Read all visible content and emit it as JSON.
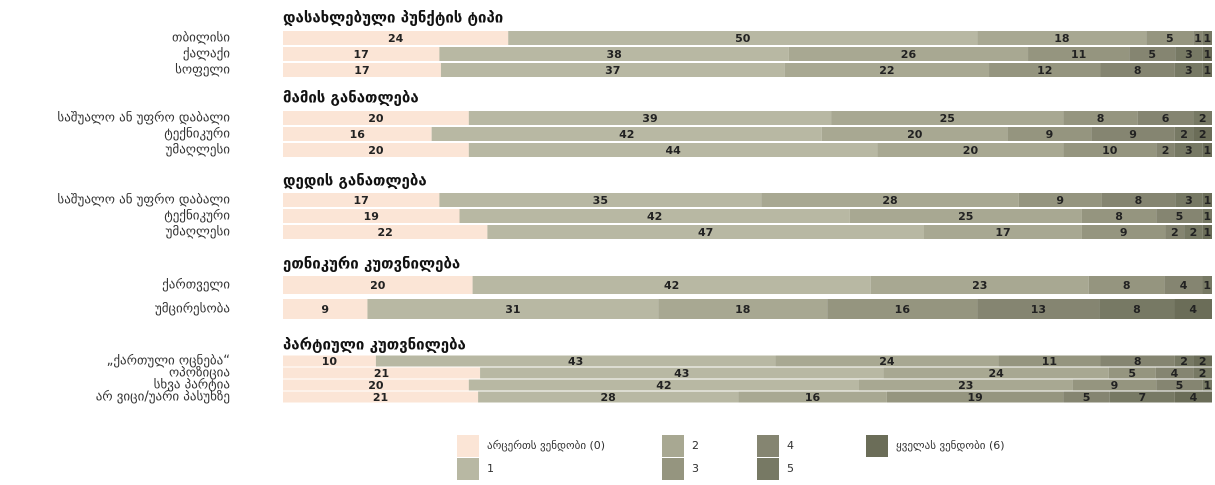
{
  "chart_data": {
    "type": "bar",
    "orientation": "horizontal",
    "stacked": true,
    "groups": [
      {
        "title": "დასახლებული პუნქტის ტიპი",
        "categories": [
          "თბილისი",
          "ქალაქი",
          "სოფელი"
        ]
      },
      {
        "title": "მამის განათლება",
        "categories": [
          "საშუალო ან უფრო დაბალი",
          "ტექნიკური",
          "უმაღლესი"
        ]
      },
      {
        "title": "დედის განათლება",
        "categories": [
          "საშუალო ან უფრო დაბალი",
          "ტექნიკური",
          "უმაღლესი"
        ]
      },
      {
        "title": "ეთნიკური კუთვნილება",
        "categories": [
          "ქართველი",
          "უმცირესობა"
        ]
      },
      {
        "title": "პარტიული კუთვნილება",
        "categories": [
          "„ქართული ოცნება“",
          "ოპოზიცია",
          "სხვა პარტია",
          "არ ვიცი/უარი პასუხზე"
        ]
      }
    ],
    "series": [
      {
        "name": "არცერთს ვენდობი (0)",
        "color": "#fbe5d6",
        "values": [
          24,
          17,
          17,
          20,
          16,
          20,
          17,
          19,
          22,
          20,
          9,
          10,
          21,
          20,
          21
        ]
      },
      {
        "name": "1",
        "color": "#b8b8a3",
        "values": [
          50,
          38,
          37,
          39,
          42,
          44,
          35,
          42,
          47,
          42,
          31,
          43,
          43,
          42,
          28
        ]
      },
      {
        "name": "2",
        "color": "#a8a892",
        "values": [
          18,
          26,
          22,
          25,
          20,
          20,
          28,
          25,
          17,
          23,
          18,
          24,
          24,
          23,
          16
        ]
      },
      {
        "name": "3",
        "color": "#95957f",
        "values": [
          5,
          11,
          12,
          8,
          9,
          10,
          9,
          8,
          9,
          8,
          16,
          11,
          5,
          9,
          19
        ]
      },
      {
        "name": "4",
        "color": "#858571",
        "values": [
          1,
          5,
          8,
          6,
          9,
          2,
          8,
          5,
          2,
          4,
          13,
          8,
          4,
          5,
          5
        ]
      },
      {
        "name": "5",
        "color": "#777964",
        "values": [
          1,
          3,
          3,
          2,
          2,
          3,
          3,
          1,
          2,
          1,
          8,
          2,
          2,
          1,
          7
        ]
      },
      {
        "name": "ყველას ვენდობი (6)",
        "color": "#6b6d58",
        "values": [
          null,
          1,
          1,
          null,
          2,
          1,
          1,
          null,
          1,
          null,
          4,
          2,
          null,
          null,
          4
        ]
      }
    ]
  }
}
